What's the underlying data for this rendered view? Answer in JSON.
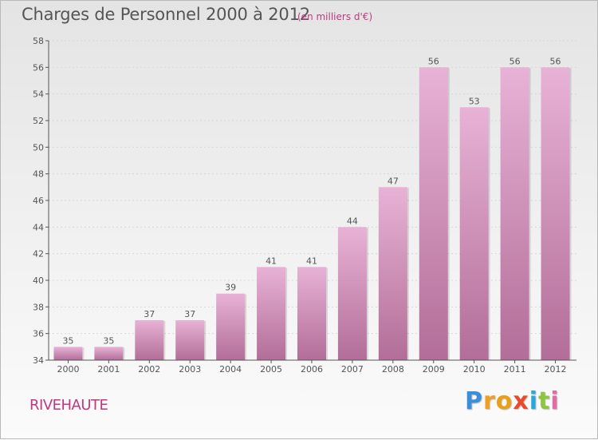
{
  "colors": {
    "bar_light": "#e8b2d6",
    "bar_dark": "#b26e98",
    "title_text": "#555555",
    "subtitle_text": "#c0387e",
    "place_text": "#c0387e",
    "axis": "#555555",
    "grid": "#d8d8d8"
  },
  "chart_data": {
    "type": "bar",
    "title": "Charges de Personnel 2000 à 2012",
    "subtitle": "(en milliers d'€)",
    "categories": [
      "2000",
      "2001",
      "2002",
      "2003",
      "2004",
      "2005",
      "2006",
      "2007",
      "2008",
      "2009",
      "2010",
      "2011",
      "2012"
    ],
    "values": [
      35,
      35,
      37,
      37,
      39,
      41,
      41,
      44,
      47,
      56,
      53,
      56,
      56
    ],
    "ylim": [
      34,
      58
    ],
    "yticks": [
      34,
      36,
      38,
      40,
      42,
      44,
      46,
      48,
      50,
      52,
      54,
      56,
      58
    ],
    "xlabel": "",
    "ylabel": "",
    "grid": true
  },
  "footer": {
    "place": "RIVEHAUTE",
    "logo_letters": [
      {
        "char": "P",
        "color": "#3a8fd6"
      },
      {
        "char": "r",
        "color": "#f0a020"
      },
      {
        "char": "o",
        "color": "#e8a018"
      },
      {
        "char": "x",
        "color": "#e84a2a"
      },
      {
        "char": "i",
        "color": "#2aa8d8"
      },
      {
        "char": "t",
        "color": "#8cc63f"
      },
      {
        "char": "i",
        "color": "#e86aa0"
      }
    ]
  }
}
